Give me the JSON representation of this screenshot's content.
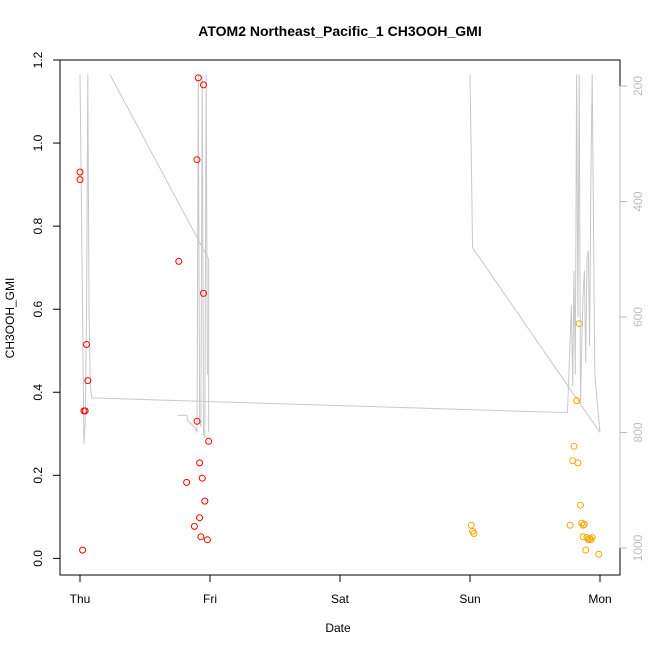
{
  "chart_data": {
    "type": "scatter",
    "title": "ATOM2 Northeast_Pacific_1 CH3OOH_GMI",
    "xlabel": "Date",
    "ylabel": "CH3OOH_GMI",
    "x_ticks": [
      "Thu",
      "Fri",
      "Sat",
      "Sun",
      "Mon"
    ],
    "xlim_days": [
      -0.2,
      4.2
    ],
    "ylim": [
      -0.04,
      1.2
    ],
    "y_ticks": [
      "0.0",
      "0.2",
      "0.4",
      "0.6",
      "0.8",
      "1.0",
      "1.2"
    ],
    "y_tick_values": [
      0,
      0.2,
      0.4,
      0.6,
      0.8,
      1.0,
      1.2
    ],
    "y2_label": "",
    "y2_ticks": [
      "200",
      "400",
      "600",
      "800",
      "1000"
    ],
    "y2_tick_values": [
      200,
      400,
      600,
      800,
      1000
    ],
    "y2_range": [
      1050,
      180
    ],
    "y2_reversed": true,
    "grid": false,
    "colors": {
      "series_1": "#ff0000",
      "series_2": "#ffa500",
      "pressure": "#c8c8c8"
    },
    "series": [
      {
        "color": "#ff0000",
        "points": [
          [
            0.0,
            0.93
          ],
          [
            0.0,
            0.912
          ],
          [
            0.02,
            0.02
          ],
          [
            0.03,
            0.355
          ],
          [
            0.04,
            0.355
          ],
          [
            0.05,
            0.515
          ],
          [
            0.06,
            0.428
          ],
          [
            0.76,
            0.715
          ],
          [
            0.82,
            0.183
          ],
          [
            0.88,
            0.077
          ],
          [
            0.9,
            0.33
          ],
          [
            0.9,
            0.96
          ],
          [
            0.91,
            1.157
          ],
          [
            0.92,
            0.23
          ],
          [
            0.92,
            0.098
          ],
          [
            0.93,
            0.052
          ],
          [
            0.94,
            0.193
          ],
          [
            0.95,
            1.14
          ],
          [
            0.95,
            0.638
          ],
          [
            0.96,
            0.138
          ],
          [
            0.98,
            0.045
          ],
          [
            0.99,
            0.282
          ]
        ]
      },
      {
        "color": "#ffa500",
        "points": [
          [
            3.01,
            0.08
          ],
          [
            3.02,
            0.065
          ],
          [
            3.03,
            0.06
          ],
          [
            3.77,
            0.08
          ],
          [
            3.79,
            0.235
          ],
          [
            3.8,
            0.27
          ],
          [
            3.82,
            0.38
          ],
          [
            3.83,
            0.23
          ],
          [
            3.84,
            0.565
          ],
          [
            3.85,
            0.128
          ],
          [
            3.86,
            0.085
          ],
          [
            3.87,
            0.052
          ],
          [
            3.87,
            0.08
          ],
          [
            3.88,
            0.082
          ],
          [
            3.89,
            0.02
          ],
          [
            3.9,
            0.05
          ],
          [
            3.91,
            0.045
          ],
          [
            3.92,
            0.048
          ],
          [
            3.93,
            0.045
          ],
          [
            3.94,
            0.05
          ],
          [
            3.99,
            0.01
          ]
        ]
      }
    ],
    "pressure_trace": [
      [
        0.0,
        180
      ],
      [
        0.02,
        600
      ],
      [
        0.03,
        820
      ],
      [
        0.04,
        780
      ],
      [
        0.05,
        600
      ],
      [
        0.06,
        180
      ],
      [
        0.07,
        600
      ],
      [
        0.08,
        720
      ],
      [
        0.09,
        740
      ],
      [
        3.65,
        765
      ],
      [
        3.75,
        765
      ],
      [
        3.78,
        580
      ],
      [
        3.79,
        720
      ],
      [
        3.8,
        520
      ],
      [
        3.81,
        700
      ],
      [
        3.82,
        180
      ],
      [
        3.83,
        600
      ],
      [
        3.84,
        180
      ],
      [
        3.85,
        750
      ],
      [
        3.86,
        650
      ],
      [
        3.87,
        560
      ],
      [
        3.88,
        520
      ],
      [
        3.89,
        680
      ],
      [
        3.9,
        500
      ],
      [
        3.91,
        485
      ],
      [
        3.92,
        650
      ],
      [
        3.93,
        350
      ],
      [
        3.94,
        180
      ],
      [
        3.96,
        700
      ],
      [
        4.0,
        800
      ]
    ],
    "pressure_segments": [
      [
        [
          0.23,
          180
        ],
        [
          0.99,
          500
        ],
        [
          0.99,
          800
        ]
      ],
      [
        [
          0.75,
          770
        ],
        [
          0.82,
          770
        ],
        [
          0.83,
          780
        ],
        [
          0.88,
          790
        ],
        [
          0.9,
          800
        ],
        [
          0.91,
          180
        ],
        [
          0.92,
          780
        ],
        [
          0.93,
          790
        ],
        [
          0.94,
          180
        ],
        [
          0.95,
          800
        ],
        [
          0.96,
          810
        ],
        [
          0.97,
          180
        ],
        [
          0.98,
          700
        ]
      ],
      [
        [
          3.0,
          180
        ],
        [
          3.02,
          480
        ],
        [
          4.0,
          800
        ]
      ]
    ]
  }
}
